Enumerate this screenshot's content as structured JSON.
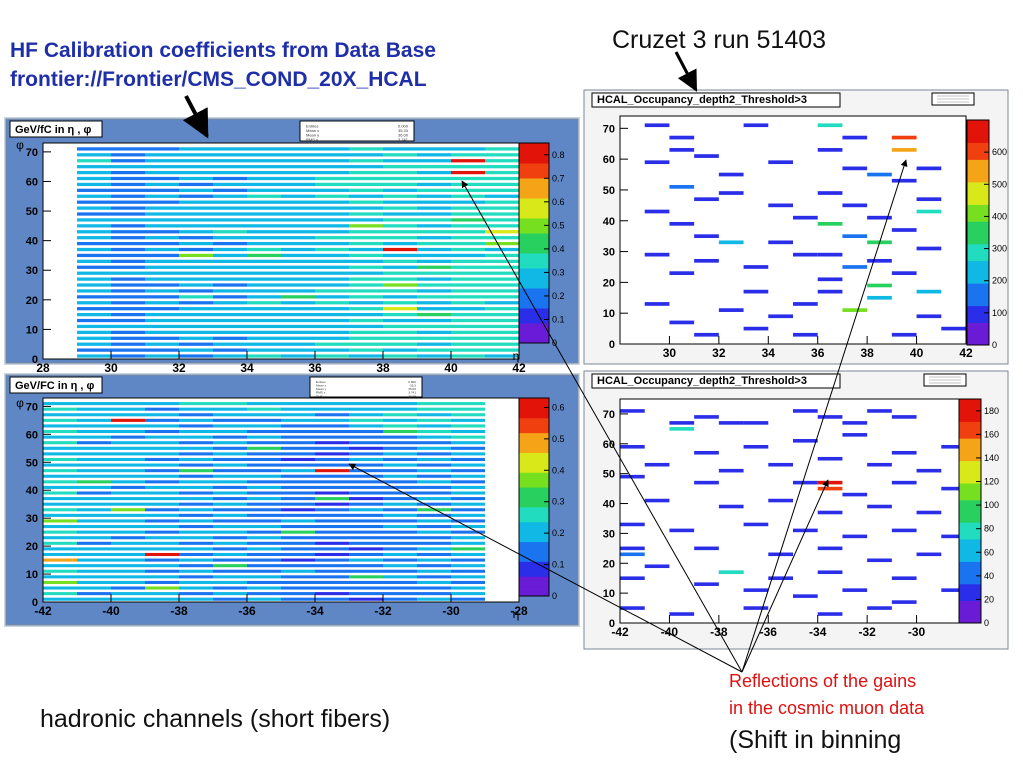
{
  "slide": {
    "title_line1": "HF Calibration coefficients from Data Base",
    "title_line2": "frontier://Frontier/CMS_COND_20X_HCAL",
    "run_label": "Cruzet 3 run 51403",
    "reflections_line1": "Reflections of the gains",
    "reflections_line2": "in the cosmic muon data",
    "shift_label": "(Shift in binning",
    "hadronic_label": "hadronic channels (short fibers)"
  },
  "colors": {
    "title": "#1f2fa8",
    "annotation": "#e01010",
    "panel_bg": "#5f87c6"
  },
  "chart_data": [
    {
      "id": "hf_pos",
      "type": "heatmap",
      "title": "GeV/fC in η , φ",
      "xlabel": "η",
      "ylabel": "φ",
      "xlim": [
        28,
        42
      ],
      "ylim": [
        0,
        73
      ],
      "x_ticks": [
        28,
        30,
        32,
        34,
        36,
        38,
        40,
        42
      ],
      "y_ticks": [
        0,
        10,
        20,
        30,
        40,
        50,
        60,
        70
      ],
      "z_range": [
        0,
        0.85
      ],
      "z_ticks": [
        0,
        0.1,
        0.2,
        0.3,
        0.4,
        0.5,
        0.6,
        0.7,
        0.8
      ],
      "columns": [
        {
          "x": [
            29,
            30
          ],
          "base": 0.24,
          "hot": [
            [
              67,
              0.36
            ]
          ]
        },
        {
          "x": [
            30,
            31
          ],
          "base": 0.2,
          "hot": [
            [
              10,
              0.32
            ]
          ]
        },
        {
          "x": [
            31,
            32
          ],
          "base": 0.24,
          "hot": [
            [
              50,
              0.3
            ]
          ]
        },
        {
          "x": [
            32,
            33
          ],
          "base": 0.25,
          "hot": [
            [
              35,
              0.52
            ],
            [
              21,
              0.36
            ]
          ]
        },
        {
          "x": [
            33,
            34
          ],
          "base": 0.25,
          "hot": [
            [
              43,
              0.38
            ]
          ]
        },
        {
          "x": [
            34,
            35
          ],
          "base": 0.28,
          "hot": [
            [
              35,
              0.4
            ]
          ]
        },
        {
          "x": [
            35,
            36
          ],
          "base": 0.27,
          "hot": [
            [
              21,
              0.4
            ]
          ]
        },
        {
          "x": [
            36,
            37
          ],
          "base": 0.29,
          "hot": [
            [
              61,
              0.38
            ]
          ]
        },
        {
          "x": [
            37,
            38
          ],
          "base": 0.32,
          "hot": [
            [
              45,
              0.48
            ]
          ]
        },
        {
          "x": [
            38,
            39
          ],
          "base": 0.32,
          "hot": [
            [
              37,
              0.8
            ],
            [
              17,
              0.56
            ],
            [
              25,
              0.52
            ]
          ]
        },
        {
          "x": [
            39,
            40
          ],
          "base": 0.3,
          "hot": [
            [
              31,
              0.44
            ],
            [
              15,
              0.42
            ]
          ]
        },
        {
          "x": [
            40,
            41
          ],
          "base": 0.34,
          "hot": [
            [
              67,
              0.82
            ],
            [
              63,
              0.78
            ],
            [
              47,
              0.46
            ]
          ]
        },
        {
          "x": [
            41,
            42
          ],
          "base": 0.34,
          "hot": [
            [
              43,
              0.56
            ],
            [
              39,
              0.48
            ]
          ]
        }
      ],
      "stats": [
        [
          "Entries",
          "0.000"
        ],
        [
          "Mean x",
          "35.33"
        ],
        [
          "Mean y",
          "36.00"
        ],
        [
          "RMS x",
          "3.741"
        ]
      ]
    },
    {
      "id": "hf_neg",
      "type": "heatmap",
      "title": "GeV/FC in η , φ",
      "xlabel": "η",
      "ylabel": "φ",
      "xlim": [
        -42,
        -28
      ],
      "ylim": [
        0,
        73
      ],
      "x_ticks": [
        -42,
        -40,
        -38,
        -36,
        -34,
        -32,
        -30,
        -28
      ],
      "y_ticks": [
        0,
        10,
        20,
        30,
        40,
        50,
        60,
        70
      ],
      "z_range": [
        0,
        0.63
      ],
      "z_ticks": [
        0,
        0.1,
        0.2,
        0.3,
        0.4,
        0.5,
        0.6
      ],
      "columns": [
        {
          "x": [
            -42,
            -41
          ],
          "base": 0.29,
          "hot": [
            [
              29,
              0.4
            ],
            [
              15,
              0.48
            ],
            [
              7,
              0.36
            ]
          ]
        },
        {
          "x": [
            -41,
            -40
          ],
          "base": 0.26,
          "hot": [
            [
              43,
              0.34
            ]
          ]
        },
        {
          "x": [
            -40,
            -39
          ],
          "base": 0.26,
          "hot": [
            [
              65,
              0.62
            ],
            [
              33,
              0.36
            ]
          ]
        },
        {
          "x": [
            -39,
            -38
          ],
          "base": 0.25,
          "hot": [
            [
              17,
              0.6
            ],
            [
              5,
              0.4
            ]
          ]
        },
        {
          "x": [
            -38,
            -37
          ],
          "base": 0.24,
          "hot": [
            [
              47,
              0.32
            ]
          ]
        },
        {
          "x": [
            -37,
            -36
          ],
          "base": 0.24,
          "hot": [
            [
              13,
              0.34
            ]
          ]
        },
        {
          "x": [
            -36,
            -35
          ],
          "base": 0.22,
          "hot": [
            [
              55,
              0.3
            ]
          ]
        },
        {
          "x": [
            -35,
            -34
          ],
          "base": 0.21,
          "hot": [
            [
              25,
              0.3
            ]
          ]
        },
        {
          "x": [
            -34,
            -33
          ],
          "base": 0.2,
          "hot": [
            [
              47,
              0.62
            ],
            [
              37,
              0.3
            ]
          ]
        },
        {
          "x": [
            -33,
            -32
          ],
          "base": 0.21,
          "hot": [
            [
              9,
              0.32
            ]
          ]
        },
        {
          "x": [
            -32,
            -31
          ],
          "base": 0.22,
          "hot": [
            [
              61,
              0.3
            ]
          ]
        },
        {
          "x": [
            -31,
            -30
          ],
          "base": 0.23,
          "hot": [
            [
              33,
              0.34
            ]
          ]
        },
        {
          "x": [
            -30,
            -29
          ],
          "base": 0.24,
          "hot": [
            [
              19,
              0.32
            ]
          ]
        }
      ],
      "stats": [
        [
          "Entries",
          "0.000"
        ],
        [
          "Mean x",
          "-35.3"
        ],
        [
          "Mean y",
          "36.00"
        ],
        [
          "RMS x",
          "3.741"
        ],
        [
          "RMS y",
          "20.78"
        ]
      ]
    },
    {
      "id": "occ_pos",
      "type": "heatmap",
      "title": "HCAL_Occupancy_depth2_Threshold>3",
      "xlabel": "",
      "ylabel": "",
      "xlim": [
        28,
        42
      ],
      "ylim": [
        0,
        74
      ],
      "x_ticks": [
        30,
        32,
        34,
        36,
        38,
        40,
        42
      ],
      "y_ticks": [
        0,
        10,
        20,
        30,
        40,
        50,
        60,
        70
      ],
      "z_range": [
        0,
        700
      ],
      "z_ticks": [
        0,
        100,
        200,
        300,
        400,
        500,
        600
      ],
      "bins": [
        [
          29,
          71,
          120
        ],
        [
          30,
          67,
          120
        ],
        [
          30,
          63,
          110
        ],
        [
          29,
          59,
          120
        ],
        [
          31,
          61,
          100
        ],
        [
          32,
          55,
          110
        ],
        [
          30,
          51,
          130
        ],
        [
          31,
          47,
          120
        ],
        [
          29,
          43,
          110
        ],
        [
          30,
          39,
          120
        ],
        [
          31,
          35,
          100
        ],
        [
          32,
          33,
          250
        ],
        [
          29,
          29,
          110
        ],
        [
          31,
          27,
          120
        ],
        [
          30,
          23,
          110
        ],
        [
          33,
          17,
          120
        ],
        [
          29,
          13,
          120
        ],
        [
          32,
          11,
          110
        ],
        [
          30,
          7,
          120
        ],
        [
          33,
          5,
          100
        ],
        [
          34,
          45,
          110
        ],
        [
          35,
          41,
          120
        ],
        [
          34,
          33,
          110
        ],
        [
          35,
          29,
          120
        ],
        [
          33,
          25,
          110
        ],
        [
          36,
          21,
          120
        ],
        [
          35,
          13,
          100
        ],
        [
          34,
          9,
          120
        ],
        [
          36,
          71,
          290
        ],
        [
          37,
          67,
          120
        ],
        [
          36,
          63,
          110
        ],
        [
          37,
          57,
          120
        ],
        [
          38,
          55,
          130
        ],
        [
          36,
          49,
          120
        ],
        [
          37,
          45,
          110
        ],
        [
          38,
          41,
          120
        ],
        [
          36,
          39,
          330
        ],
        [
          37,
          35,
          130
        ],
        [
          38,
          33,
          320
        ],
        [
          36,
          29,
          120
        ],
        [
          38,
          27,
          110
        ],
        [
          37,
          25,
          150
        ],
        [
          38,
          19,
          370
        ],
        [
          36,
          17,
          120
        ],
        [
          38,
          15,
          220
        ],
        [
          37,
          11,
          430
        ],
        [
          39,
          67,
          620
        ],
        [
          39,
          63,
          560
        ],
        [
          40,
          57,
          120
        ],
        [
          39,
          53,
          110
        ],
        [
          40,
          47,
          120
        ],
        [
          40,
          43,
          270
        ],
        [
          39,
          37,
          120
        ],
        [
          40,
          31,
          110
        ],
        [
          39,
          23,
          120
        ],
        [
          40,
          17,
          250
        ],
        [
          40,
          9,
          120
        ],
        [
          41,
          5,
          110
        ],
        [
          39,
          3,
          120
        ],
        [
          35,
          3,
          120
        ],
        [
          31,
          3,
          110
        ],
        [
          33,
          71,
          110
        ],
        [
          34,
          59,
          120
        ],
        [
          32,
          49,
          110
        ]
      ]
    },
    {
      "id": "occ_neg",
      "type": "heatmap",
      "title": "HCAL_Occupancy_depth2_Threshold>3",
      "xlabel": "",
      "ylabel": "",
      "xlim": [
        -42,
        -28
      ],
      "ylim": [
        0,
        75
      ],
      "x_ticks": [
        -42,
        -40,
        -38,
        -36,
        -34,
        -32,
        -30
      ],
      "y_ticks": [
        0,
        10,
        20,
        30,
        40,
        50,
        60,
        70
      ],
      "z_range": [
        0,
        190
      ],
      "z_ticks": [
        0,
        20,
        40,
        60,
        80,
        100,
        120,
        140,
        160,
        180
      ],
      "bins": [
        [
          -42,
          71,
          25
        ],
        [
          -40,
          67,
          25
        ],
        [
          -40,
          65,
          75
        ],
        [
          -39,
          69,
          25
        ],
        [
          -38,
          67,
          30
        ],
        [
          -37,
          67,
          30
        ],
        [
          -35,
          71,
          25
        ],
        [
          -34,
          69,
          25
        ],
        [
          -33,
          67,
          30
        ],
        [
          -32,
          71,
          25
        ],
        [
          -31,
          69,
          25
        ],
        [
          -42,
          59,
          25
        ],
        [
          -39,
          57,
          25
        ],
        [
          -37,
          59,
          25
        ],
        [
          -35,
          61,
          25
        ],
        [
          -33,
          63,
          25
        ],
        [
          -31,
          57,
          25
        ],
        [
          -29,
          59,
          25
        ],
        [
          -41,
          53,
          25
        ],
        [
          -38,
          51,
          25
        ],
        [
          -36,
          53,
          25
        ],
        [
          -34,
          55,
          25
        ],
        [
          -32,
          53,
          25
        ],
        [
          -30,
          51,
          25
        ],
        [
          -42,
          49,
          25
        ],
        [
          -39,
          47,
          25
        ],
        [
          -35,
          47,
          30
        ],
        [
          -34,
          47,
          175
        ],
        [
          -34,
          45,
          170
        ],
        [
          -33,
          43,
          25
        ],
        [
          -31,
          47,
          25
        ],
        [
          -29,
          45,
          25
        ],
        [
          -41,
          41,
          25
        ],
        [
          -38,
          39,
          25
        ],
        [
          -36,
          41,
          25
        ],
        [
          -34,
          37,
          25
        ],
        [
          -32,
          39,
          25
        ],
        [
          -30,
          37,
          25
        ],
        [
          -42,
          33,
          25
        ],
        [
          -40,
          31,
          25
        ],
        [
          -37,
          33,
          25
        ],
        [
          -35,
          31,
          25
        ],
        [
          -33,
          29,
          25
        ],
        [
          -31,
          31,
          25
        ],
        [
          -29,
          29,
          25
        ],
        [
          -42,
          25,
          25
        ],
        [
          -42,
          23,
          35
        ],
        [
          -39,
          25,
          25
        ],
        [
          -36,
          23,
          25
        ],
        [
          -34,
          25,
          25
        ],
        [
          -32,
          21,
          25
        ],
        [
          -30,
          23,
          25
        ],
        [
          -41,
          19,
          25
        ],
        [
          -38,
          17,
          30
        ],
        [
          -36,
          15,
          25
        ],
        [
          -34,
          17,
          25
        ],
        [
          -31,
          15,
          25
        ],
        [
          -42,
          15,
          30
        ],
        [
          -39,
          13,
          25
        ],
        [
          -37,
          11,
          25
        ],
        [
          -35,
          9,
          25
        ],
        [
          -33,
          11,
          25
        ],
        [
          -31,
          7,
          25
        ],
        [
          -42,
          5,
          25
        ],
        [
          -40,
          3,
          25
        ],
        [
          -37,
          5,
          25
        ],
        [
          -34,
          3,
          25
        ],
        [
          -32,
          5,
          25
        ],
        [
          -38,
          17,
          75
        ],
        [
          -29,
          11,
          25
        ]
      ]
    }
  ]
}
